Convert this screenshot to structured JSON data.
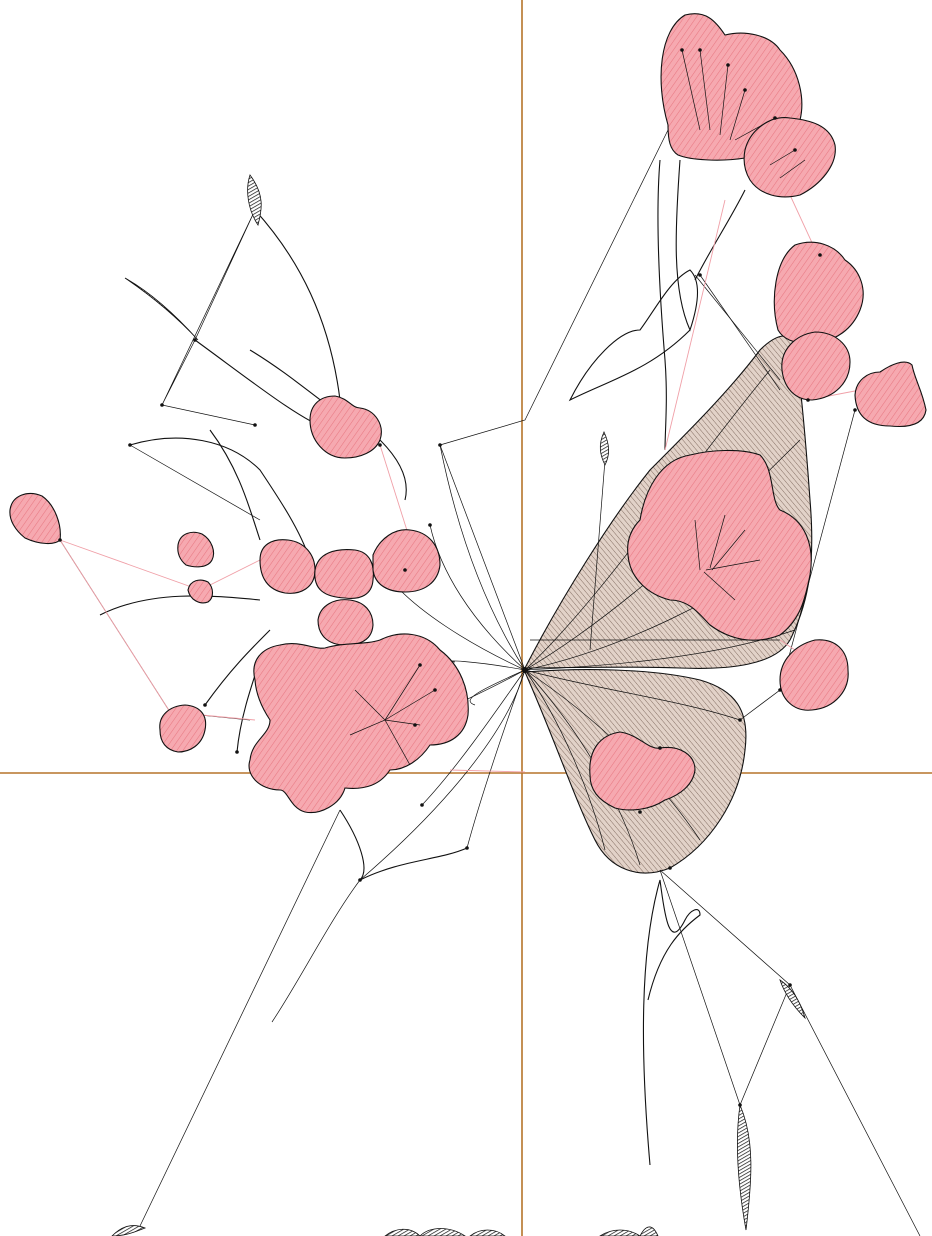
{
  "canvas": {
    "background": "#ffffff",
    "axis_color": "#b5742a"
  },
  "colors": {
    "petal_fill": "#f6a9b0",
    "petal_hatch": "#e87882",
    "wing_fill": "#e2d2c8",
    "wing_hatch": "#7a6458",
    "stroke": "#111111",
    "travel_line": "#f0a0a8"
  },
  "artwork": {
    "subject": "butterfly-floral-embroidery",
    "icon": "butterfly-icon"
  }
}
